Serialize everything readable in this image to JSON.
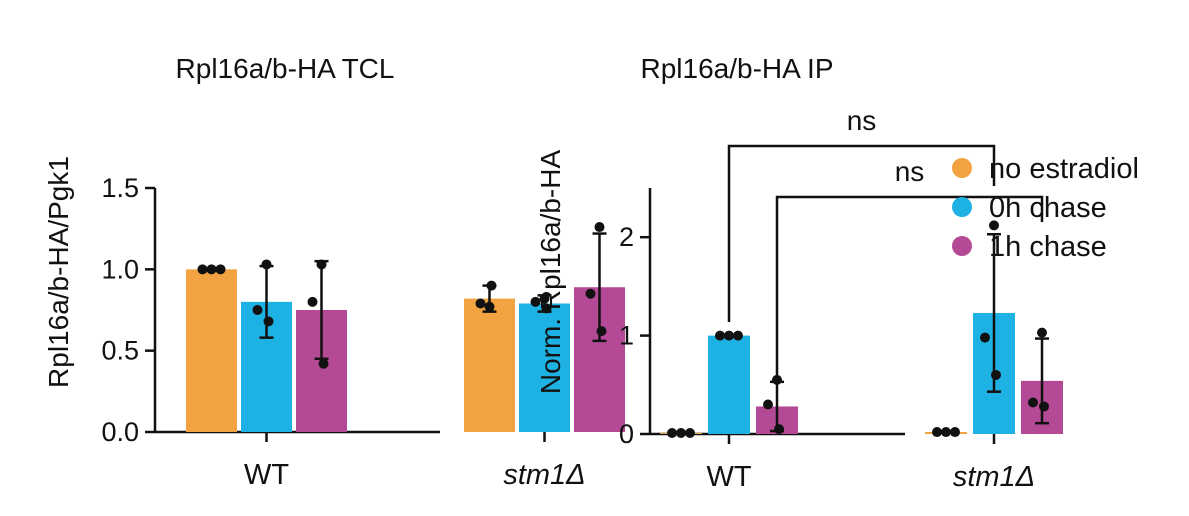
{
  "colors": {
    "no_estradiol": "#F0A340",
    "chase_0h": "#1EB2E4",
    "chase_1h": "#B44A96",
    "ink": "#111111"
  },
  "legend": [
    {
      "label": "no estradiol",
      "color": "#F0A340"
    },
    {
      "label": "0h chase",
      "color": "#1EB2E4"
    },
    {
      "label": "1h chase",
      "color": "#B44A96"
    }
  ],
  "chart_data": [
    {
      "type": "bar",
      "title": "Rpl16a/b-HA TCL",
      "xlabel": "",
      "ylabel": "Rpl16a/b-HA/Pgk1",
      "ylim": [
        0,
        1.5
      ],
      "yticks": [
        "0.0",
        "0.5",
        "1.0",
        "1.5"
      ],
      "categories": [
        "WT",
        "stm1Δ"
      ],
      "series": [
        {
          "name": "no estradiol",
          "values": [
            1.0,
            0.82
          ],
          "err": [
            0.0,
            0.08
          ],
          "points": [
            [
              1.0,
              1.0,
              1.0
            ],
            [
              0.77,
              0.79,
              0.9
            ]
          ]
        },
        {
          "name": "0h chase",
          "values": [
            0.8,
            0.79
          ],
          "err": [
            0.22,
            0.05
          ],
          "points": [
            [
              1.03,
              0.75,
              0.68
            ],
            [
              0.82,
              0.8,
              0.76
            ]
          ]
        },
        {
          "name": "1h chase",
          "values": [
            0.75,
            0.89
          ],
          "err": [
            0.3,
            0.33
          ],
          "points": [
            [
              1.03,
              0.8,
              0.42
            ],
            [
              1.26,
              0.85,
              0.62
            ]
          ]
        }
      ],
      "annotations": []
    },
    {
      "type": "bar",
      "title": "Rpl16a/b-HA IP",
      "xlabel": "",
      "ylabel": "Norm. Rpl16a/b-HA",
      "ylim": [
        0,
        2.5
      ],
      "yticks": [
        "0",
        "1",
        "2"
      ],
      "categories": [
        "WT",
        "stm1Δ"
      ],
      "series": [
        {
          "name": "no estradiol",
          "values": [
            0.01,
            0.02
          ],
          "err": [
            0.0,
            0.0
          ],
          "points": [
            [
              0.01,
              0.01,
              0.01
            ],
            [
              0.02,
              0.02,
              0.02
            ]
          ]
        },
        {
          "name": "0h chase",
          "values": [
            1.0,
            1.23
          ],
          "err": [
            0.0,
            0.8
          ],
          "points": [
            [
              1.0,
              1.0,
              1.0
            ],
            [
              2.12,
              0.98,
              0.6
            ]
          ]
        },
        {
          "name": "1h chase",
          "values": [
            0.28,
            0.54
          ],
          "err": [
            0.25,
            0.43
          ],
          "points": [
            [
              0.55,
              0.3,
              0.05
            ],
            [
              1.03,
              0.32,
              0.28
            ]
          ]
        }
      ],
      "annotations": [
        {
          "text": "ns",
          "from": "WT / 0h chase",
          "to": "stm1Δ / 0h chase"
        },
        {
          "text": "ns",
          "from": "WT / 1h chase",
          "to": "stm1Δ / 1h chase"
        }
      ]
    }
  ]
}
